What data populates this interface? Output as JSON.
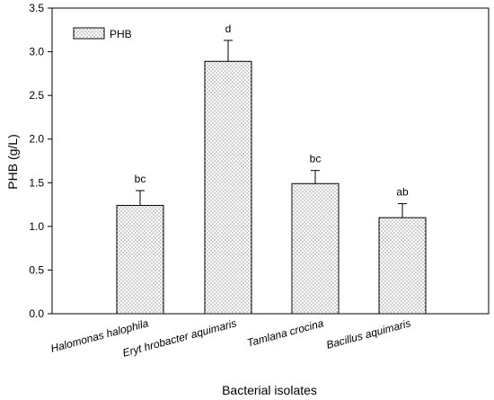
{
  "chart_data": {
    "type": "bar",
    "categories": [
      "Halomonas halophila",
      "Erythrobacter aquimaris",
      "Tamlana crocina",
      "Bacillus aquimaris"
    ],
    "category_labels": [
      "Halomonas halophila",
      "Eryt hrobacter aquimaris",
      "Tamlana crocina",
      "Bacillus aquimaris"
    ],
    "series": [
      {
        "name": "PHB",
        "values": [
          1.24,
          2.89,
          1.49,
          1.1
        ],
        "errors": [
          0.17,
          0.24,
          0.15,
          0.16
        ],
        "significance": [
          "bc",
          "d",
          "bc",
          "ab"
        ]
      }
    ],
    "xlabel": "Bacterial isolates",
    "ylabel": "PHB (g/L)",
    "ylim": [
      0,
      3.5
    ],
    "yticks": [
      "0.0",
      "0.5",
      "1.0",
      "1.5",
      "2.0",
      "2.5",
      "3.0",
      "3.5"
    ],
    "grid": false,
    "legend": {
      "position": "top-left",
      "entries": [
        "PHB"
      ]
    },
    "bar_fill": "dotted",
    "colors": {
      "bar_fill": "#ffffff",
      "bar_dots": "#555555",
      "axis": "#000000"
    }
  }
}
